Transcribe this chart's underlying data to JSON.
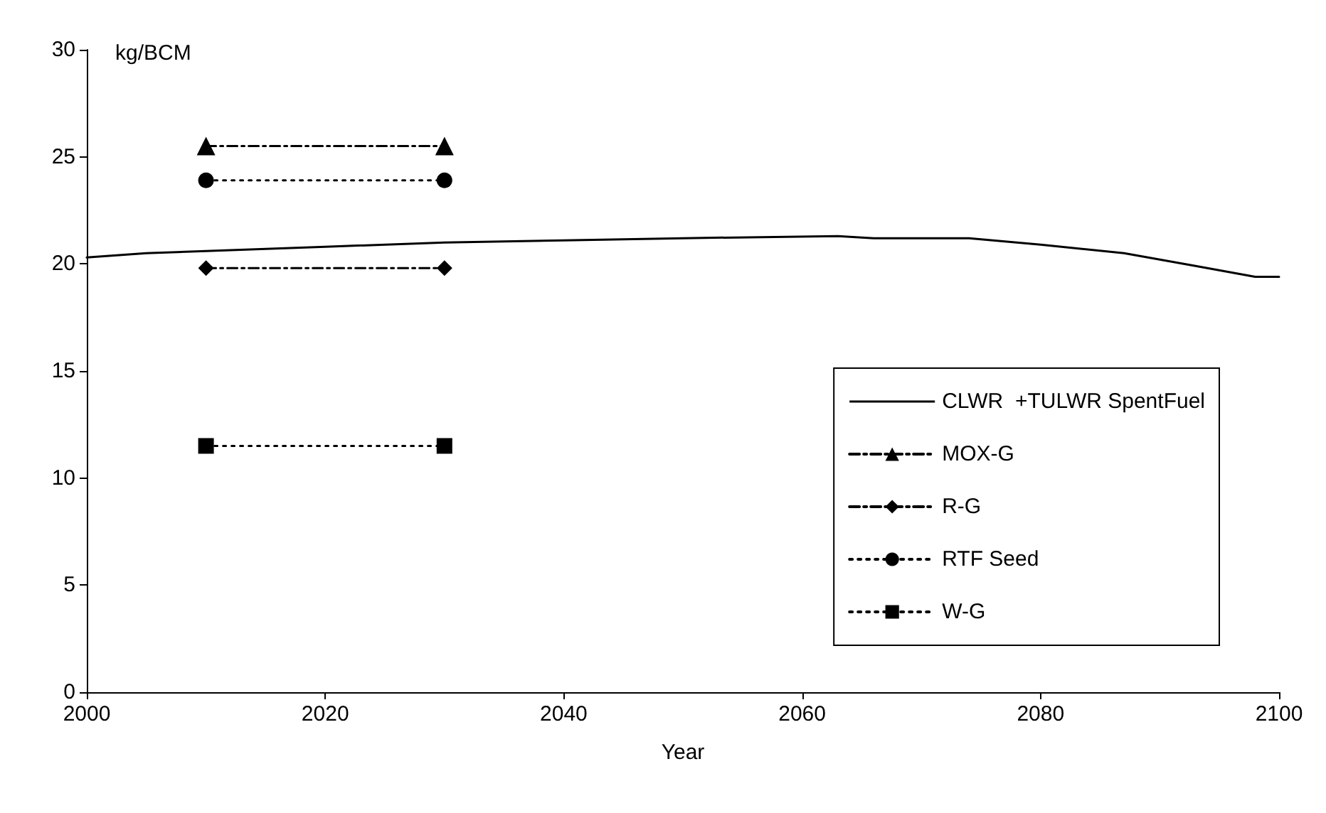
{
  "chart_data": {
    "type": "line",
    "xlabel": "Year",
    "ylabel": "kg/BCM",
    "xlim": [
      2000,
      2100
    ],
    "xticks": [
      2000,
      2020,
      2040,
      2060,
      2080,
      2100
    ],
    "ylim": [
      0,
      30
    ],
    "yticks": [
      0,
      5,
      10,
      15,
      20,
      25,
      30
    ],
    "grid": false,
    "legend": "bottom right",
    "series": [
      {
        "name": "CLWR  +TULWR SpentFuel",
        "color": "#000000",
        "marker": "none",
        "line_style": "solid",
        "x": [
          2000,
          2005,
          2010,
          2020,
          2030,
          2040,
          2050,
          2063,
          2066,
          2074,
          2080,
          2087,
          2093,
          2098,
          2100
        ],
        "values": [
          20.3,
          20.5,
          20.6,
          20.8,
          21.0,
          21.1,
          21.2,
          21.3,
          21.2,
          21.2,
          20.9,
          20.5,
          19.9,
          19.4,
          19.4
        ]
      },
      {
        "name": "MOX-G",
        "color": "#000000",
        "marker": "triangle",
        "line_style": "dashed",
        "x": [
          2010,
          2030
        ],
        "values": [
          25.5,
          25.5
        ]
      },
      {
        "name": "R-G",
        "color": "#000000",
        "marker": "diamond",
        "line_style": "dashed",
        "x": [
          2010,
          2030
        ],
        "values": [
          19.8,
          19.8
        ]
      },
      {
        "name": "RTF Seed",
        "color": "#000000",
        "marker": "circle",
        "line_style": "dotted",
        "x": [
          2010,
          2030
        ],
        "values": [
          23.9,
          23.9
        ]
      },
      {
        "name": "W-G",
        "color": "#000000",
        "marker": "square",
        "line_style": "dotted",
        "x": [
          2010,
          2030
        ],
        "values": [
          11.5,
          11.5
        ]
      }
    ]
  }
}
